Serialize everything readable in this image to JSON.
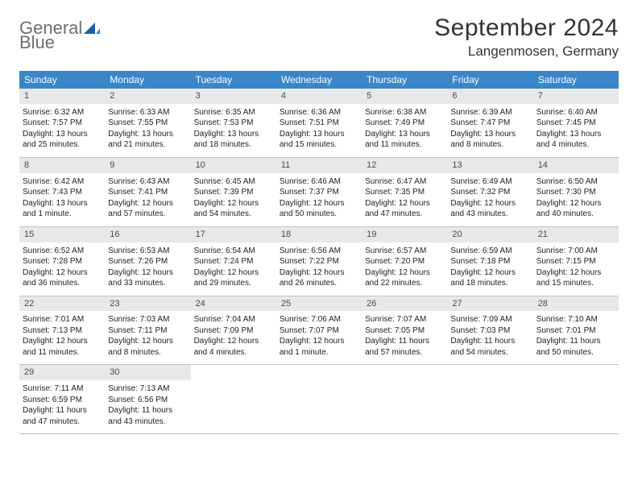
{
  "logo": {
    "word1": "General",
    "word2": "Blue"
  },
  "title": {
    "month": "September 2024",
    "location": "Langenmosen, Germany"
  },
  "colors": {
    "header_bg": "#3a86c8",
    "daynum_bg": "#e8e8e8",
    "rule": "#b9c7d5",
    "logo_gray": "#6e6e6e",
    "logo_blue": "#2d6fb5"
  },
  "dow": [
    "Sunday",
    "Monday",
    "Tuesday",
    "Wednesday",
    "Thursday",
    "Friday",
    "Saturday"
  ],
  "days": [
    {
      "n": "1",
      "sr": "6:32 AM",
      "ss": "7:57 PM",
      "dl": "13 hours and 25 minutes."
    },
    {
      "n": "2",
      "sr": "6:33 AM",
      "ss": "7:55 PM",
      "dl": "13 hours and 21 minutes."
    },
    {
      "n": "3",
      "sr": "6:35 AM",
      "ss": "7:53 PM",
      "dl": "13 hours and 18 minutes."
    },
    {
      "n": "4",
      "sr": "6:36 AM",
      "ss": "7:51 PM",
      "dl": "13 hours and 15 minutes."
    },
    {
      "n": "5",
      "sr": "6:38 AM",
      "ss": "7:49 PM",
      "dl": "13 hours and 11 minutes."
    },
    {
      "n": "6",
      "sr": "6:39 AM",
      "ss": "7:47 PM",
      "dl": "13 hours and 8 minutes."
    },
    {
      "n": "7",
      "sr": "6:40 AM",
      "ss": "7:45 PM",
      "dl": "13 hours and 4 minutes."
    },
    {
      "n": "8",
      "sr": "6:42 AM",
      "ss": "7:43 PM",
      "dl": "13 hours and 1 minute."
    },
    {
      "n": "9",
      "sr": "6:43 AM",
      "ss": "7:41 PM",
      "dl": "12 hours and 57 minutes."
    },
    {
      "n": "10",
      "sr": "6:45 AM",
      "ss": "7:39 PM",
      "dl": "12 hours and 54 minutes."
    },
    {
      "n": "11",
      "sr": "6:46 AM",
      "ss": "7:37 PM",
      "dl": "12 hours and 50 minutes."
    },
    {
      "n": "12",
      "sr": "6:47 AM",
      "ss": "7:35 PM",
      "dl": "12 hours and 47 minutes."
    },
    {
      "n": "13",
      "sr": "6:49 AM",
      "ss": "7:32 PM",
      "dl": "12 hours and 43 minutes."
    },
    {
      "n": "14",
      "sr": "6:50 AM",
      "ss": "7:30 PM",
      "dl": "12 hours and 40 minutes."
    },
    {
      "n": "15",
      "sr": "6:52 AM",
      "ss": "7:28 PM",
      "dl": "12 hours and 36 minutes."
    },
    {
      "n": "16",
      "sr": "6:53 AM",
      "ss": "7:26 PM",
      "dl": "12 hours and 33 minutes."
    },
    {
      "n": "17",
      "sr": "6:54 AM",
      "ss": "7:24 PM",
      "dl": "12 hours and 29 minutes."
    },
    {
      "n": "18",
      "sr": "6:56 AM",
      "ss": "7:22 PM",
      "dl": "12 hours and 26 minutes."
    },
    {
      "n": "19",
      "sr": "6:57 AM",
      "ss": "7:20 PM",
      "dl": "12 hours and 22 minutes."
    },
    {
      "n": "20",
      "sr": "6:59 AM",
      "ss": "7:18 PM",
      "dl": "12 hours and 18 minutes."
    },
    {
      "n": "21",
      "sr": "7:00 AM",
      "ss": "7:15 PM",
      "dl": "12 hours and 15 minutes."
    },
    {
      "n": "22",
      "sr": "7:01 AM",
      "ss": "7:13 PM",
      "dl": "12 hours and 11 minutes."
    },
    {
      "n": "23",
      "sr": "7:03 AM",
      "ss": "7:11 PM",
      "dl": "12 hours and 8 minutes."
    },
    {
      "n": "24",
      "sr": "7:04 AM",
      "ss": "7:09 PM",
      "dl": "12 hours and 4 minutes."
    },
    {
      "n": "25",
      "sr": "7:06 AM",
      "ss": "7:07 PM",
      "dl": "12 hours and 1 minute."
    },
    {
      "n": "26",
      "sr": "7:07 AM",
      "ss": "7:05 PM",
      "dl": "11 hours and 57 minutes."
    },
    {
      "n": "27",
      "sr": "7:09 AM",
      "ss": "7:03 PM",
      "dl": "11 hours and 54 minutes."
    },
    {
      "n": "28",
      "sr": "7:10 AM",
      "ss": "7:01 PM",
      "dl": "11 hours and 50 minutes."
    },
    {
      "n": "29",
      "sr": "7:11 AM",
      "ss": "6:59 PM",
      "dl": "11 hours and 47 minutes."
    },
    {
      "n": "30",
      "sr": "7:13 AM",
      "ss": "6:56 PM",
      "dl": "11 hours and 43 minutes."
    }
  ],
  "labels": {
    "sunrise": "Sunrise:",
    "sunset": "Sunset:",
    "daylight": "Daylight:"
  },
  "layout": {
    "start_offset": 0,
    "total_cells": 35
  }
}
